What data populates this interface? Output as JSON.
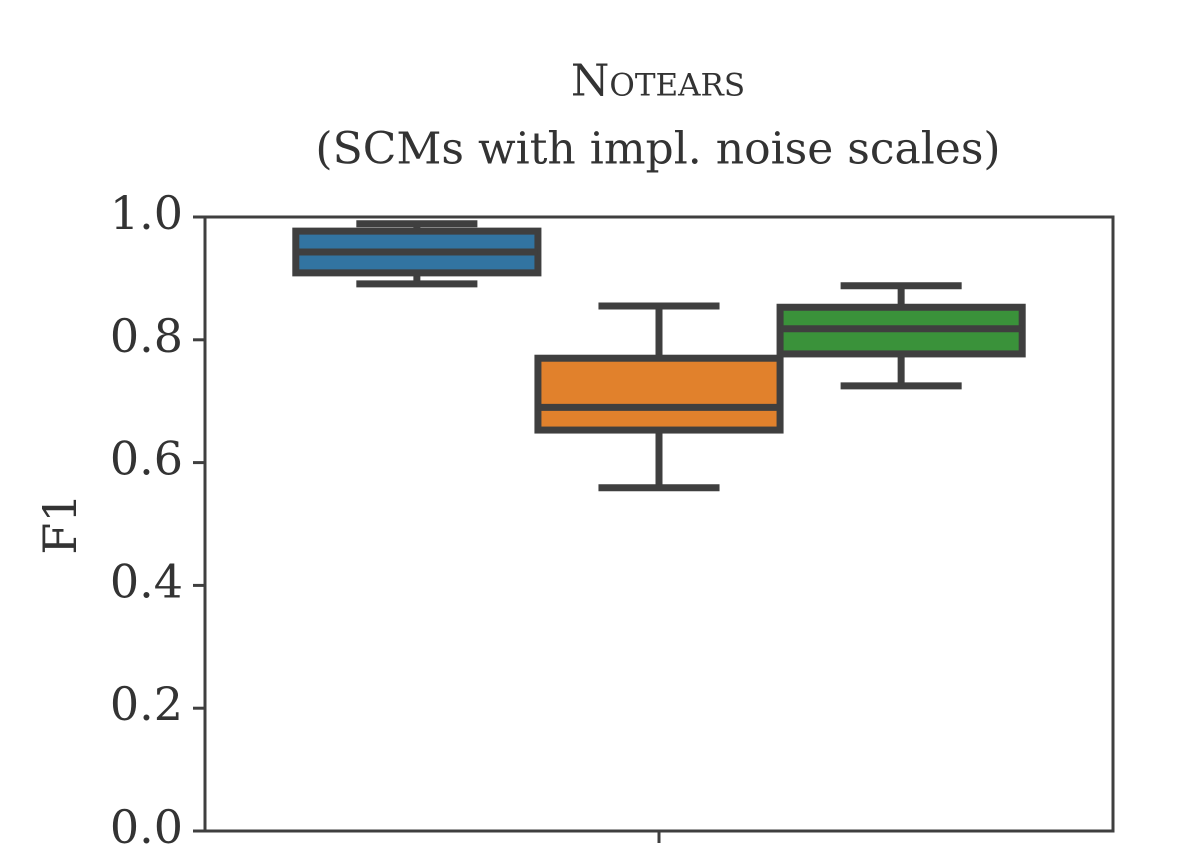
{
  "chart_data": {
    "type": "box",
    "title": "Notears",
    "subtitle": "(SCMs with impl. noise scales)",
    "ylabel": "F1",
    "categories": [
      null
    ],
    "series": [
      {
        "color": "#3274a1",
        "whisker_low": 0.891,
        "q1": 0.909,
        "median": 0.943,
        "q3": 0.977,
        "whisker_high": 0.989
      },
      {
        "color": "#e1812c",
        "whisker_low": 0.559,
        "q1": 0.653,
        "median": 0.69,
        "q3": 0.77,
        "whisker_high": 0.855
      },
      {
        "color": "#3a923a",
        "whisker_low": 0.725,
        "q1": 0.777,
        "median": 0.818,
        "q3": 0.853,
        "whisker_high": 0.888
      }
    ],
    "ylim": [
      0,
      1
    ],
    "yticks": [
      {
        "value": 0,
        "label": "0.0"
      },
      0.2,
      0.4,
      0.6,
      0.8,
      {
        "value": 1,
        "label": "1.0"
      }
    ],
    "grid": false
  }
}
